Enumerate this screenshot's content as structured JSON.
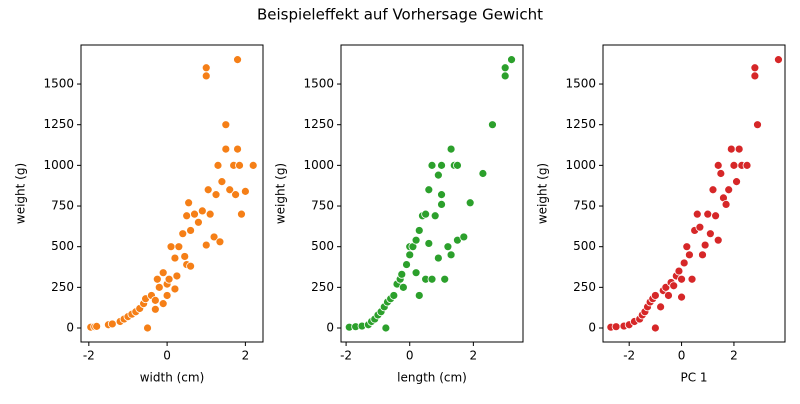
{
  "title": "Beispieleffekt auf Vorhersage Gewicht",
  "chart_data": [
    {
      "type": "scatter",
      "x_label": "width (cm)",
      "y_label": "weight (g)",
      "color": "#f57f17",
      "xlim": [
        -2.2,
        2.45
      ],
      "ylim": [
        -86,
        1740
      ],
      "xticks": [
        -2,
        0,
        2
      ],
      "yticks": [
        0,
        250,
        500,
        750,
        1000,
        1250,
        1500
      ],
      "x": [
        -1.95,
        -1.85,
        -1.8,
        -1.5,
        -1.4,
        -1.2,
        -1.1,
        -1.0,
        -0.9,
        -0.8,
        -0.7,
        -0.6,
        -0.55,
        -0.5,
        -0.4,
        -0.3,
        -0.3,
        -0.2,
        -0.25,
        -0.1,
        0,
        0,
        0.05,
        0.1,
        0.2,
        0.25,
        0.3,
        0.4,
        0.45,
        0.5,
        0.5,
        0.55,
        0.6,
        0.7,
        0.8,
        0.9,
        1.0,
        1.0,
        1.0,
        1.05,
        1.1,
        1.2,
        1.25,
        1.3,
        1.4,
        1.5,
        1.5,
        1.6,
        1.7,
        1.75,
        1.8,
        1.8,
        1.85,
        1.9,
        2.0,
        2.2,
        0.2,
        -0.1,
        0.6,
        1.35
      ],
      "values": [
        5,
        8,
        10,
        20,
        25,
        40,
        55,
        70,
        85,
        100,
        120,
        150,
        180,
        0,
        200,
        170,
        115,
        250,
        300,
        340,
        200,
        270,
        300,
        500,
        430,
        320,
        500,
        580,
        440,
        390,
        690,
        770,
        600,
        700,
        650,
        720,
        510,
        1600,
        1550,
        850,
        700,
        560,
        820,
        1000,
        900,
        1250,
        1100,
        850,
        1000,
        820,
        1100,
        1650,
        1000,
        700,
        840,
        1000,
        240,
        150,
        380,
        530
      ]
    },
    {
      "type": "scatter",
      "x_label": "length (cm)",
      "y_label": "weight (g)",
      "color": "#2ca02c",
      "xlim": [
        -2.16,
        3.56
      ],
      "ylim": [
        -86,
        1740
      ],
      "xticks": [
        -2,
        0,
        2
      ],
      "yticks": [
        0,
        250,
        500,
        750,
        1000,
        1250,
        1500
      ],
      "x": [
        -1.9,
        -1.7,
        -1.5,
        -1.3,
        -1.2,
        -1.1,
        -1.0,
        -0.9,
        -0.8,
        -0.75,
        -0.7,
        -0.6,
        -0.5,
        -0.4,
        -0.3,
        -0.25,
        -0.2,
        -0.1,
        0,
        0,
        0.1,
        0.2,
        0.3,
        0.3,
        0.4,
        0.5,
        0.5,
        0.6,
        0.7,
        0.7,
        0.8,
        0.9,
        0.9,
        1.0,
        1.0,
        1.1,
        1.2,
        1.3,
        1.3,
        1.4,
        1.5,
        1.5,
        1.7,
        1.9,
        2.3,
        2.6,
        3.0,
        3.0,
        3.2,
        0.6,
        0.2,
        1.0
      ],
      "values": [
        5,
        8,
        12,
        20,
        40,
        55,
        80,
        100,
        130,
        0,
        160,
        180,
        200,
        270,
        300,
        330,
        250,
        390,
        450,
        500,
        500,
        540,
        200,
        600,
        690,
        300,
        700,
        850,
        1000,
        300,
        690,
        430,
        940,
        820,
        1000,
        300,
        500,
        1100,
        450,
        1000,
        1000,
        540,
        560,
        770,
        950,
        1250,
        1550,
        1600,
        1650,
        520,
        340,
        760
      ]
    },
    {
      "type": "scatter",
      "x_label": "PC 1",
      "y_label": "weight (g)",
      "color": "#d62728",
      "xlim": [
        -3.0,
        3.95
      ],
      "ylim": [
        -86,
        1740
      ],
      "xticks": [
        -2,
        0,
        2
      ],
      "yticks": [
        0,
        250,
        500,
        750,
        1000,
        1250,
        1500
      ],
      "x": [
        -2.7,
        -2.5,
        -2.2,
        -2.0,
        -1.8,
        -1.6,
        -1.5,
        -1.4,
        -1.3,
        -1.2,
        -1.1,
        -1.0,
        -1.0,
        -0.8,
        -0.7,
        -0.6,
        -0.5,
        -0.4,
        -0.2,
        -0.1,
        0,
        0.1,
        0.2,
        0.3,
        0.4,
        0.5,
        0.6,
        0.7,
        0.8,
        0.9,
        1.0,
        1.1,
        1.2,
        1.3,
        1.4,
        1.4,
        1.5,
        1.6,
        1.7,
        1.8,
        1.9,
        2.0,
        2.1,
        2.2,
        2.3,
        2.5,
        2.8,
        2.8,
        2.9,
        3.7,
        0.0,
        -0.3
      ],
      "values": [
        5,
        8,
        12,
        20,
        40,
        55,
        80,
        100,
        130,
        160,
        180,
        0,
        200,
        130,
        230,
        250,
        200,
        280,
        320,
        350,
        300,
        400,
        500,
        450,
        300,
        600,
        700,
        620,
        450,
        510,
        700,
        580,
        850,
        690,
        1000,
        540,
        950,
        800,
        760,
        850,
        1100,
        1000,
        900,
        1100,
        1000,
        1000,
        1600,
        1550,
        1250,
        1650,
        190,
        260
      ]
    }
  ]
}
